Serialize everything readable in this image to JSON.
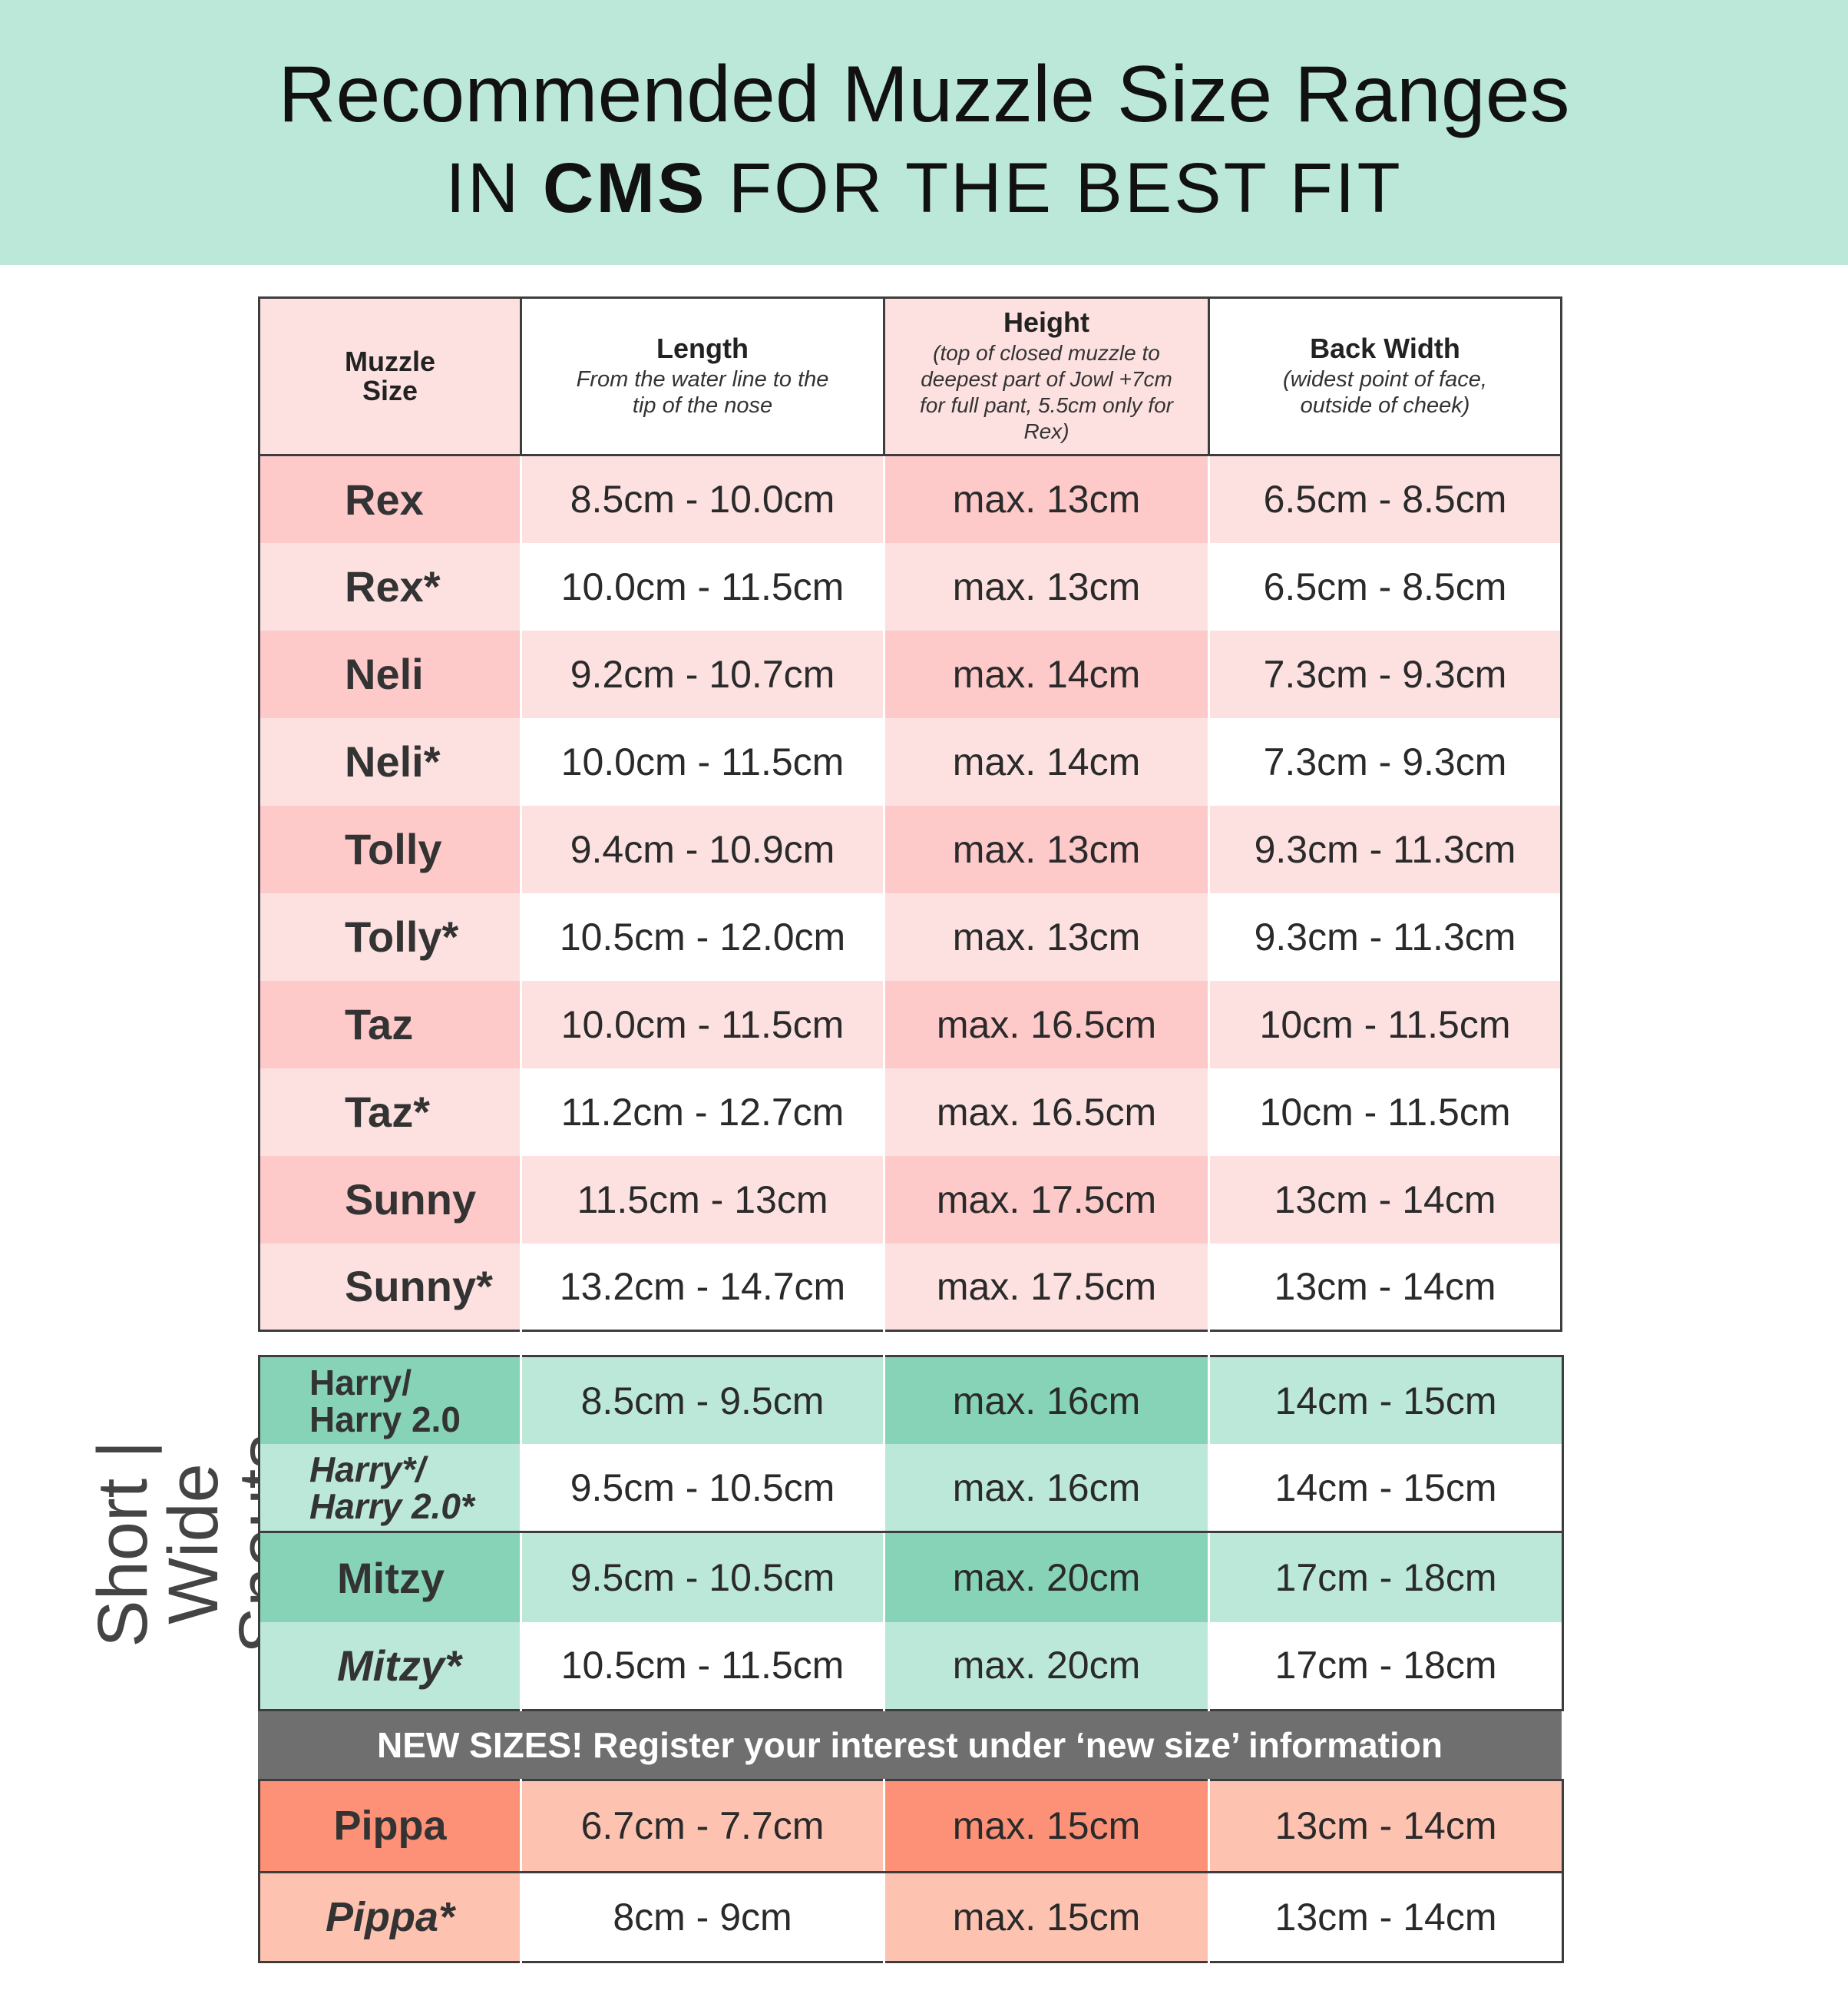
{
  "header": {
    "title": "Recommended Muzzle Size Ranges",
    "subtitle_prefix": "IN",
    "subtitle_bold": "CMS",
    "subtitle_suffix": "FOR THE BEST FIT"
  },
  "columns": [
    {
      "title": "Muzzle Size",
      "note": ""
    },
    {
      "title": "Length",
      "note": "From the water line to the tip of the nose"
    },
    {
      "title": "Height",
      "note": "(top of closed muzzle to deepest part of Jowl +7cm for full pant, 5.5cm only for Rex)"
    },
    {
      "title": "Back Width",
      "note": "(widest point of face, outside of cheek)"
    }
  ],
  "standard_sizes": [
    {
      "name": "Rex",
      "length": "8.5cm - 10.0cm",
      "height": "max. 13cm",
      "width": "6.5cm - 8.5cm"
    },
    {
      "name": "Rex*",
      "length": "10.0cm - 11.5cm",
      "height": "max. 13cm",
      "width": "6.5cm - 8.5cm"
    },
    {
      "name": "Neli",
      "length": "9.2cm - 10.7cm",
      "height": "max. 14cm",
      "width": "7.3cm - 9.3cm"
    },
    {
      "name": "Neli*",
      "length": "10.0cm - 11.5cm",
      "height": "max. 14cm",
      "width": "7.3cm - 9.3cm"
    },
    {
      "name": "Tolly",
      "length": "9.4cm - 10.9cm",
      "height": "max. 13cm",
      "width": "9.3cm - 11.3cm"
    },
    {
      "name": "Tolly*",
      "length": "10.5cm - 12.0cm",
      "height": "max. 13cm",
      "width": "9.3cm - 11.3cm"
    },
    {
      "name": "Taz",
      "length": "10.0cm - 11.5cm",
      "height": "max. 16.5cm",
      "width": "10cm - 11.5cm"
    },
    {
      "name": "Taz*",
      "length": "11.2cm - 12.7cm",
      "height": "max. 16.5cm",
      "width": "10cm - 11.5cm"
    },
    {
      "name": "Sunny",
      "length": "11.5cm - 13cm",
      "height": "max. 17.5cm",
      "width": "13cm - 14cm"
    },
    {
      "name": "Sunny*",
      "length": "13.2cm - 14.7cm",
      "height": "max. 17.5cm",
      "width": "13cm - 14cm"
    }
  ],
  "short_wide": {
    "label_line1": "Short | Wide",
    "label_line2": "Snouts",
    "rows": [
      {
        "name_line1": "Harry/",
        "name_line2": "Harry 2.0",
        "length": "8.5cm - 9.5cm",
        "height": "max. 16cm",
        "width": "14cm - 15cm"
      },
      {
        "name_line1": "Harry*/",
        "name_line2": "Harry 2.0*",
        "length": "9.5cm - 10.5cm",
        "height": "max. 16cm",
        "width": "14cm - 15cm"
      },
      {
        "name": "Mitzy",
        "length": "9.5cm - 10.5cm",
        "height": "max. 20cm",
        "width": "17cm - 18cm"
      },
      {
        "name": "Mitzy*",
        "length": "10.5cm - 11.5cm",
        "height": "max. 20cm",
        "width": "17cm - 18cm"
      }
    ]
  },
  "banner": "NEW SIZES! Register your interest under ‘new size’ information",
  "new_sizes": [
    {
      "name": "Pippa",
      "length": "6.7cm - 7.7cm",
      "height": "max. 15cm",
      "width": "13cm - 14cm"
    },
    {
      "name": "Pippa*",
      "length": "8cm - 9cm",
      "height": "max. 15cm",
      "width": "13cm - 14cm"
    }
  ],
  "colors": {
    "header_bg": "#bce8da",
    "pink_dark": "#fdc9c9",
    "pink_light": "#fde1e1",
    "green_dark": "#86d3b8",
    "green_light": "#bce8da",
    "orange_dark": "#fd9178",
    "orange_light": "#fec2b1",
    "banner_bg": "#6f6f70"
  }
}
